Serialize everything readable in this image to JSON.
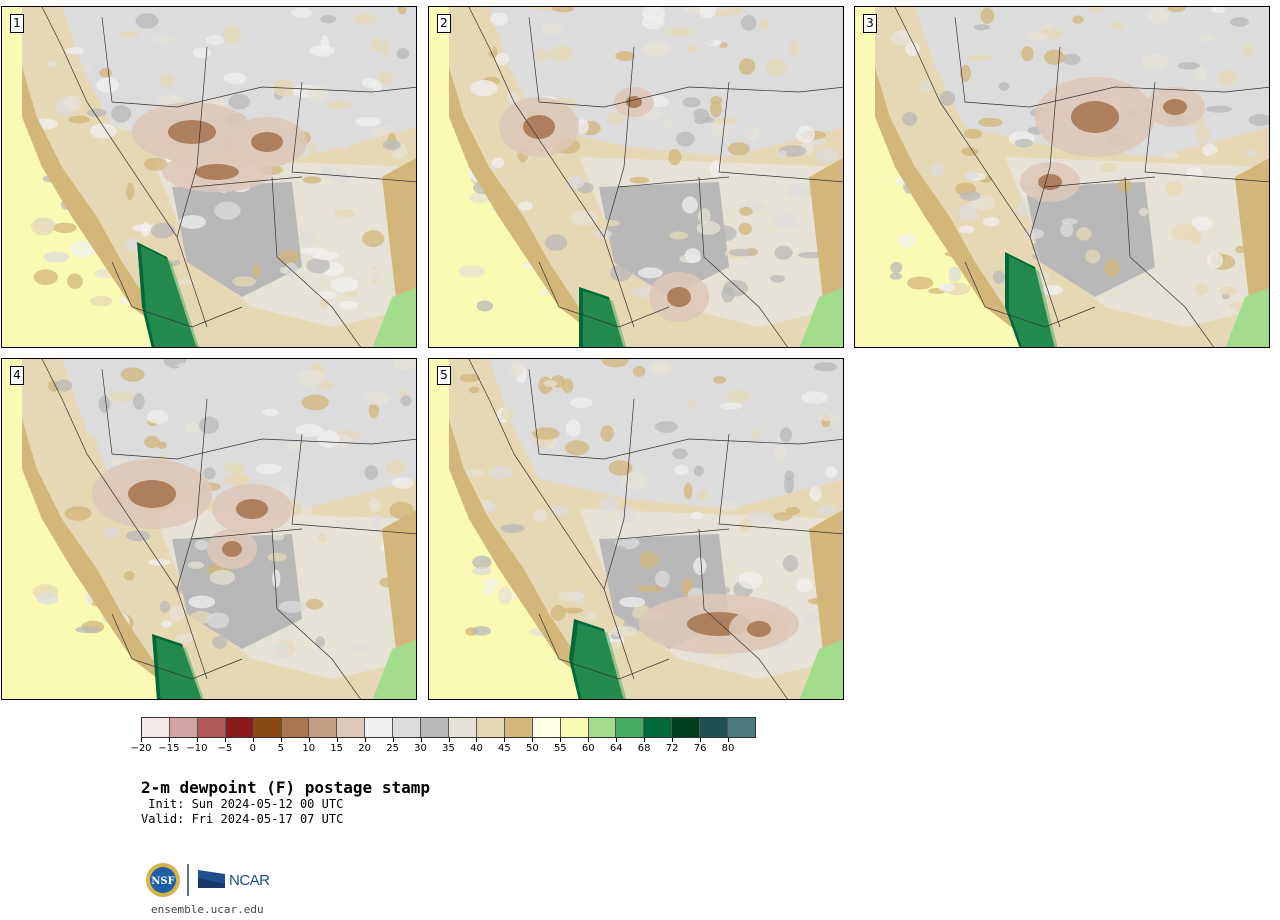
{
  "panels": [
    {
      "label": "1"
    },
    {
      "label": "2"
    },
    {
      "label": "3"
    },
    {
      "label": "4"
    },
    {
      "label": "5"
    }
  ],
  "colorbar": {
    "colors": [
      "#f6e8e8",
      "#d4a3a3",
      "#b05a5a",
      "#8b1a1a",
      "#8a4a12",
      "#a87752",
      "#c49e84",
      "#dec8b8",
      "#f0f0f0",
      "#dcdcdc",
      "#b8b8b8",
      "#e6e2d6",
      "#e6d8b4",
      "#d2b67a",
      "#ffffe6",
      "#fafab4",
      "#a4dc8e",
      "#46aa5e",
      "#00693a",
      "#00401e",
      "#1e5050",
      "#4c7b7b"
    ],
    "tick_labels": [
      "-20",
      "-15",
      "-10",
      "-5",
      "0",
      "5",
      "10",
      "15",
      "20",
      "25",
      "30",
      "35",
      "40",
      "45",
      "50",
      "55",
      "60",
      "64",
      "68",
      "72",
      "76",
      "80"
    ]
  },
  "title": "2-m dewpoint (F) postage stamp",
  "init": " Init: Sun 2024-05-12 00 UTC",
  "valid": "Valid: Fri 2024-05-17 07 UTC",
  "logo": {
    "nsf_text": "NSF",
    "ncar_text": "NCAR",
    "url": "ensemble.ucar.edu"
  }
}
